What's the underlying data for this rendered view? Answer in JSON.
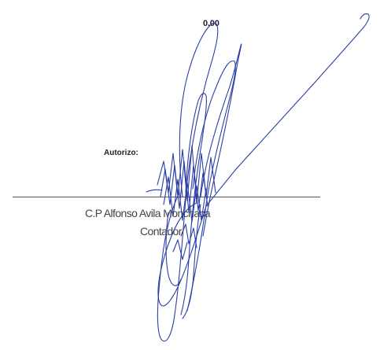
{
  "document": {
    "amount": "0.00",
    "authorization_label": "Autorizo:",
    "signer_name": "C.P Alfonso Avila Monchaca",
    "signer_role": "Contador"
  },
  "signature": {
    "ink_color": "#2b3fa6"
  }
}
